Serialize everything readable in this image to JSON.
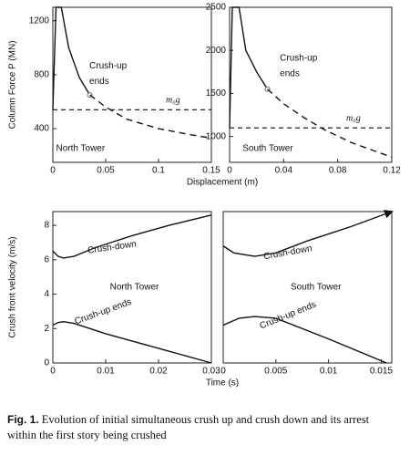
{
  "chart_data": [
    {
      "type": "line",
      "xlabel": "Displacement (m)",
      "ylabel": "Column Force P (MN)",
      "xlim": [
        0,
        0.15
      ],
      "ylim": [
        150,
        1300
      ],
      "xticks": [
        0,
        0.05,
        0.1,
        0.15
      ],
      "yticks": [
        400,
        800,
        1200
      ],
      "series": [
        {
          "color": "#111111",
          "style": "solid",
          "marker_end": true,
          "x": [
            0,
            0.003,
            0.008,
            0.015,
            0.025,
            0.035
          ],
          "values": [
            540,
            1300,
            1300,
            1000,
            780,
            650
          ]
        },
        {
          "color": "#111111",
          "style": "dashed",
          "x": [
            0.035,
            0.05,
            0.07,
            0.1,
            0.13,
            0.15
          ],
          "values": [
            650,
            560,
            470,
            400,
            355,
            330
          ]
        }
      ],
      "hline": 540,
      "hline_label": "m₀g",
      "annotations": [
        "Crush-up",
        "ends",
        "North Tower"
      ]
    },
    {
      "type": "line",
      "xlim": [
        0,
        0.12
      ],
      "ylim": [
        700,
        2500
      ],
      "xticks": [
        0,
        0.04,
        0.08,
        0.12
      ],
      "yticks": [
        1000,
        1500,
        2000,
        2500
      ],
      "series": [
        {
          "color": "#111111",
          "style": "solid",
          "marker_end": true,
          "x": [
            0,
            0.002,
            0.007,
            0.012,
            0.02,
            0.028
          ],
          "values": [
            1100,
            2500,
            2500,
            2000,
            1750,
            1550
          ]
        },
        {
          "color": "#111111",
          "style": "dashed",
          "x": [
            0.028,
            0.04,
            0.055,
            0.07,
            0.09,
            0.12
          ],
          "values": [
            1550,
            1380,
            1220,
            1080,
            930,
            760
          ]
        }
      ],
      "hline": 1100,
      "hline_label": "m₀g",
      "annotations": [
        "Crush-up",
        "ends",
        "South Tower"
      ]
    },
    {
      "type": "line",
      "xlabel": "Time (s)",
      "ylabel": "Crush front velocity (m/s)",
      "xlim": [
        0,
        0.03
      ],
      "ylim": [
        0,
        8.8
      ],
      "xticks": [
        0,
        0.01,
        0.02,
        0.03
      ],
      "yticks": [
        0,
        2,
        4,
        6,
        8
      ],
      "series": [
        {
          "color": "#111111",
          "style": "solid",
          "x": [
            0,
            0.001,
            0.002,
            0.004,
            0.008,
            0.015,
            0.022,
            0.03
          ],
          "values": [
            6.5,
            6.2,
            6.1,
            6.2,
            6.7,
            7.4,
            8.0,
            8.6
          ]
        },
        {
          "color": "#111111",
          "style": "solid",
          "x": [
            0,
            0.001,
            0.002,
            0.004,
            0.01,
            0.02,
            0.03
          ],
          "values": [
            2.2,
            2.35,
            2.4,
            2.3,
            1.7,
            0.85,
            0
          ]
        }
      ],
      "annotations": [
        "Crush-down",
        "North Tower",
        "Crush-up ends"
      ]
    },
    {
      "type": "line",
      "xlim": [
        0,
        0.016
      ],
      "ylim": [
        0,
        8.8
      ],
      "xticks": [
        0,
        0.005,
        0.01,
        0.015
      ],
      "series": [
        {
          "color": "#111111",
          "style": "solid",
          "arrow": true,
          "x": [
            0,
            0.001,
            0.003,
            0.005,
            0.008,
            0.012,
            0.016
          ],
          "values": [
            6.8,
            6.4,
            6.2,
            6.4,
            7.1,
            7.9,
            8.8
          ]
        },
        {
          "color": "#111111",
          "style": "solid",
          "x": [
            0,
            0.0015,
            0.003,
            0.005,
            0.01,
            0.0155
          ],
          "values": [
            2.2,
            2.6,
            2.7,
            2.6,
            1.4,
            0
          ]
        }
      ],
      "annotations": [
        "Crush-down",
        "South Tower",
        "Crush-up ends"
      ]
    }
  ],
  "caption": {
    "label": "Fig. 1.",
    "text": "Evolution of initial simultaneous crush up and crush down and its arrest within the first story being crushed"
  }
}
